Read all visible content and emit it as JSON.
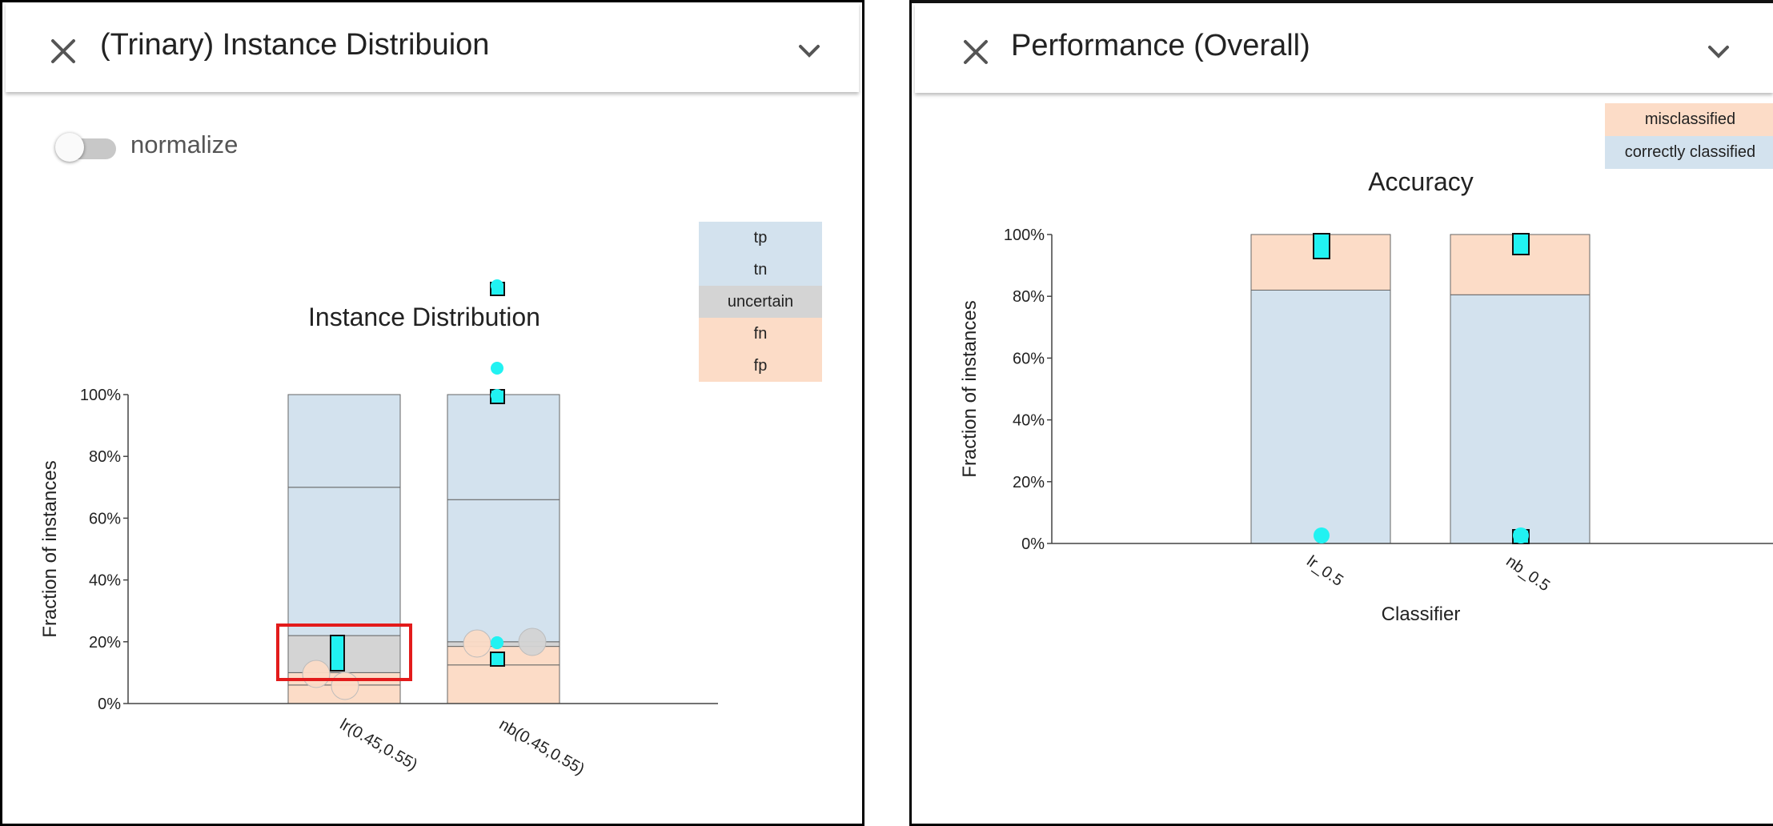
{
  "left_panel": {
    "title": "(Trinary) Instance Distribuion",
    "toggle_label": "normalize",
    "legend": [
      {
        "label": "tp",
        "color": "#d3e2ee"
      },
      {
        "label": "tn",
        "color": "#d3e2ee"
      },
      {
        "label": "uncertain",
        "color": "#d4d4d4"
      },
      {
        "label": "fn",
        "color": "#fcdcc7"
      },
      {
        "label": "fp",
        "color": "#fcdcc7"
      }
    ]
  },
  "right_panel": {
    "title": "Performance (Overall)",
    "legend": [
      {
        "label": "misclassified",
        "color": "#fcdcc7"
      },
      {
        "label": "correctly classified",
        "color": "#d3e2ee"
      }
    ]
  },
  "colors": {
    "blue": "#d3e2ee",
    "peach": "#fcdcc7",
    "gray": "#d4d4d4",
    "marker": "#21f2f2",
    "highlight": "#e31b1b"
  },
  "chart_data": [
    {
      "type": "bar",
      "title": "Instance Distribution",
      "ylabel": "Fraction of instances",
      "xlabel": "",
      "ylim": [
        0,
        100
      ],
      "yticks": [
        "0%",
        "20%",
        "40%",
        "60%",
        "80%",
        "100%"
      ],
      "categories": [
        "lr(0.45,0.55)",
        "nb(0.45,0.55)"
      ],
      "stack_order": [
        "fp",
        "fn",
        "uncertain",
        "tn",
        "tp"
      ],
      "series": [
        {
          "name": "fp",
          "values": [
            6,
            12.5
          ]
        },
        {
          "name": "fn",
          "values": [
            4,
            6
          ]
        },
        {
          "name": "uncertain",
          "values": [
            12,
            1.5
          ]
        },
        {
          "name": "tn",
          "values": [
            48,
            46
          ]
        },
        {
          "name": "tp",
          "values": [
            30,
            34
          ]
        }
      ]
    },
    {
      "type": "bar",
      "title": "Accuracy",
      "ylabel": "Fraction of instances",
      "xlabel": "Classifier",
      "ylim": [
        0,
        100
      ],
      "yticks": [
        "0%",
        "20%",
        "40%",
        "60%",
        "80%",
        "100%"
      ],
      "categories": [
        "lr_0.5",
        "nb_0.5"
      ],
      "series": [
        {
          "name": "correctly classified",
          "values": [
            82,
            80.5
          ]
        },
        {
          "name": "misclassified",
          "values": [
            18,
            19.5
          ]
        }
      ]
    }
  ]
}
